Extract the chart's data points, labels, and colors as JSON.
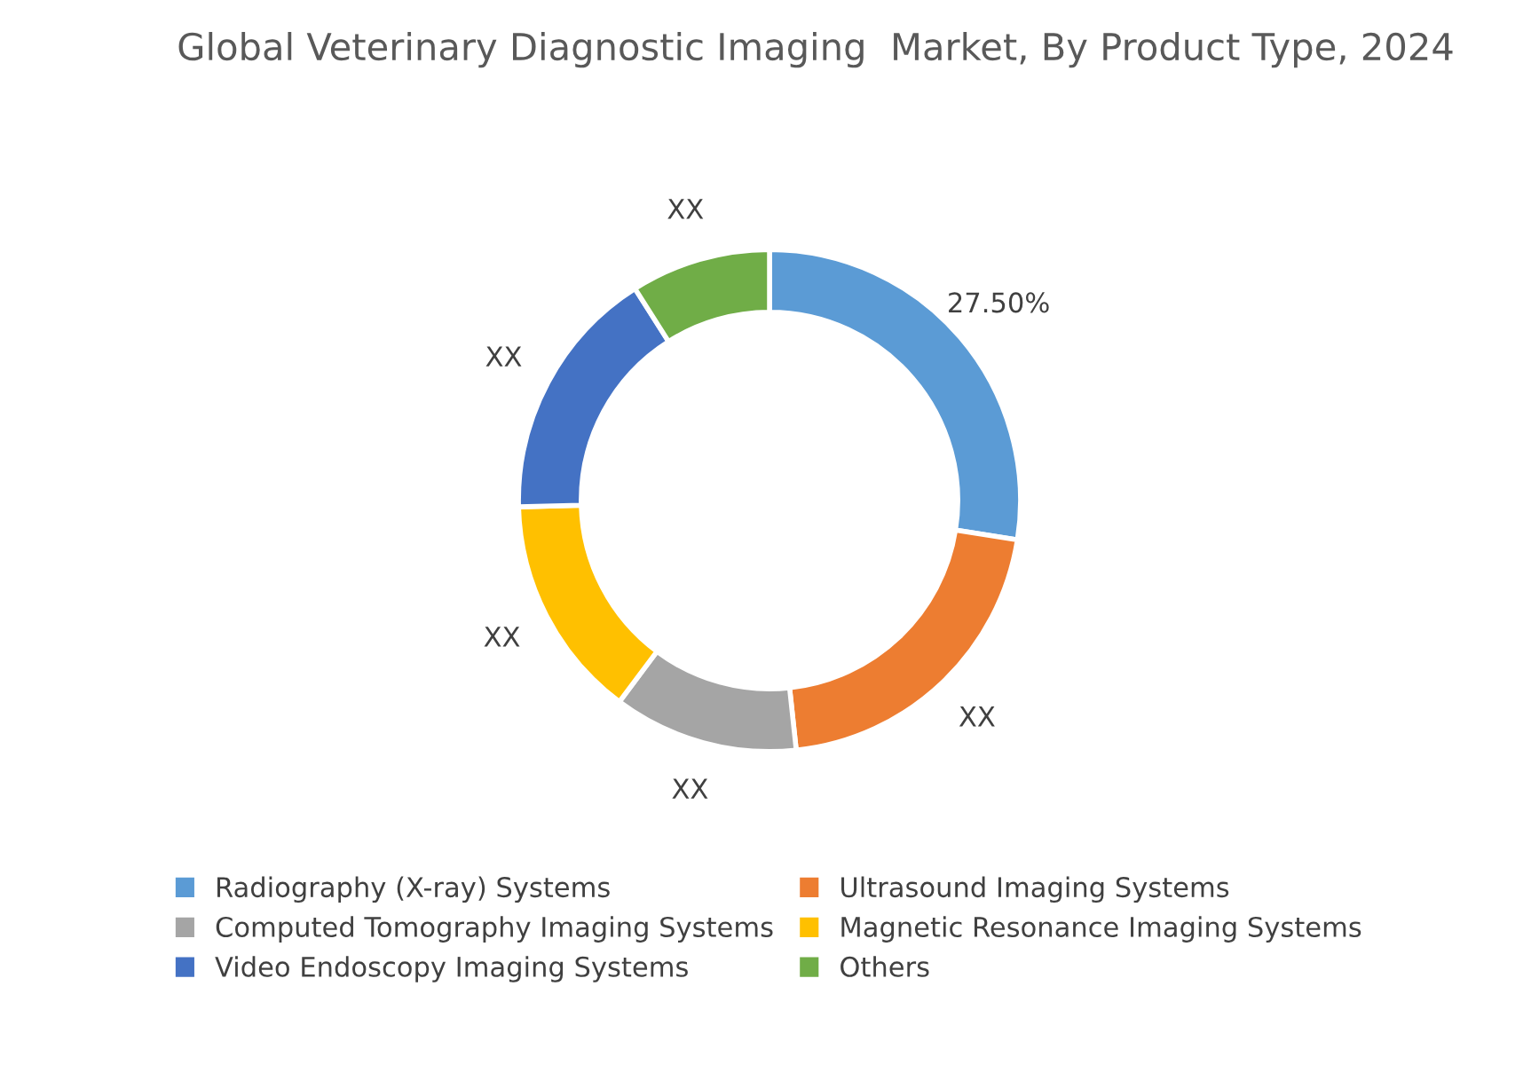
{
  "chart_data": {
    "type": "donut",
    "title": "Global Veterinary Diagnostic Imaging  Market, By Product Type, 2024",
    "categories": [
      "Radiography (X-ray) Systems",
      "Ultrasound Imaging Systems",
      "Computed Tomography Imaging Systems",
      "Magnetic Resonance Imaging Systems",
      "Video Endoscopy Imaging Systems",
      "Others"
    ],
    "values": [
      27.5,
      20.8,
      11.9,
      14.4,
      16.4,
      9.0
    ],
    "colors": [
      "#5b9bd5",
      "#ed7d31",
      "#a5a5a5",
      "#ffc000",
      "#4472c4",
      "#70ad47"
    ],
    "value_labels": [
      "27.50%",
      "XX",
      "XX",
      "XX",
      "XX",
      "XX"
    ],
    "legend": "bottom"
  }
}
